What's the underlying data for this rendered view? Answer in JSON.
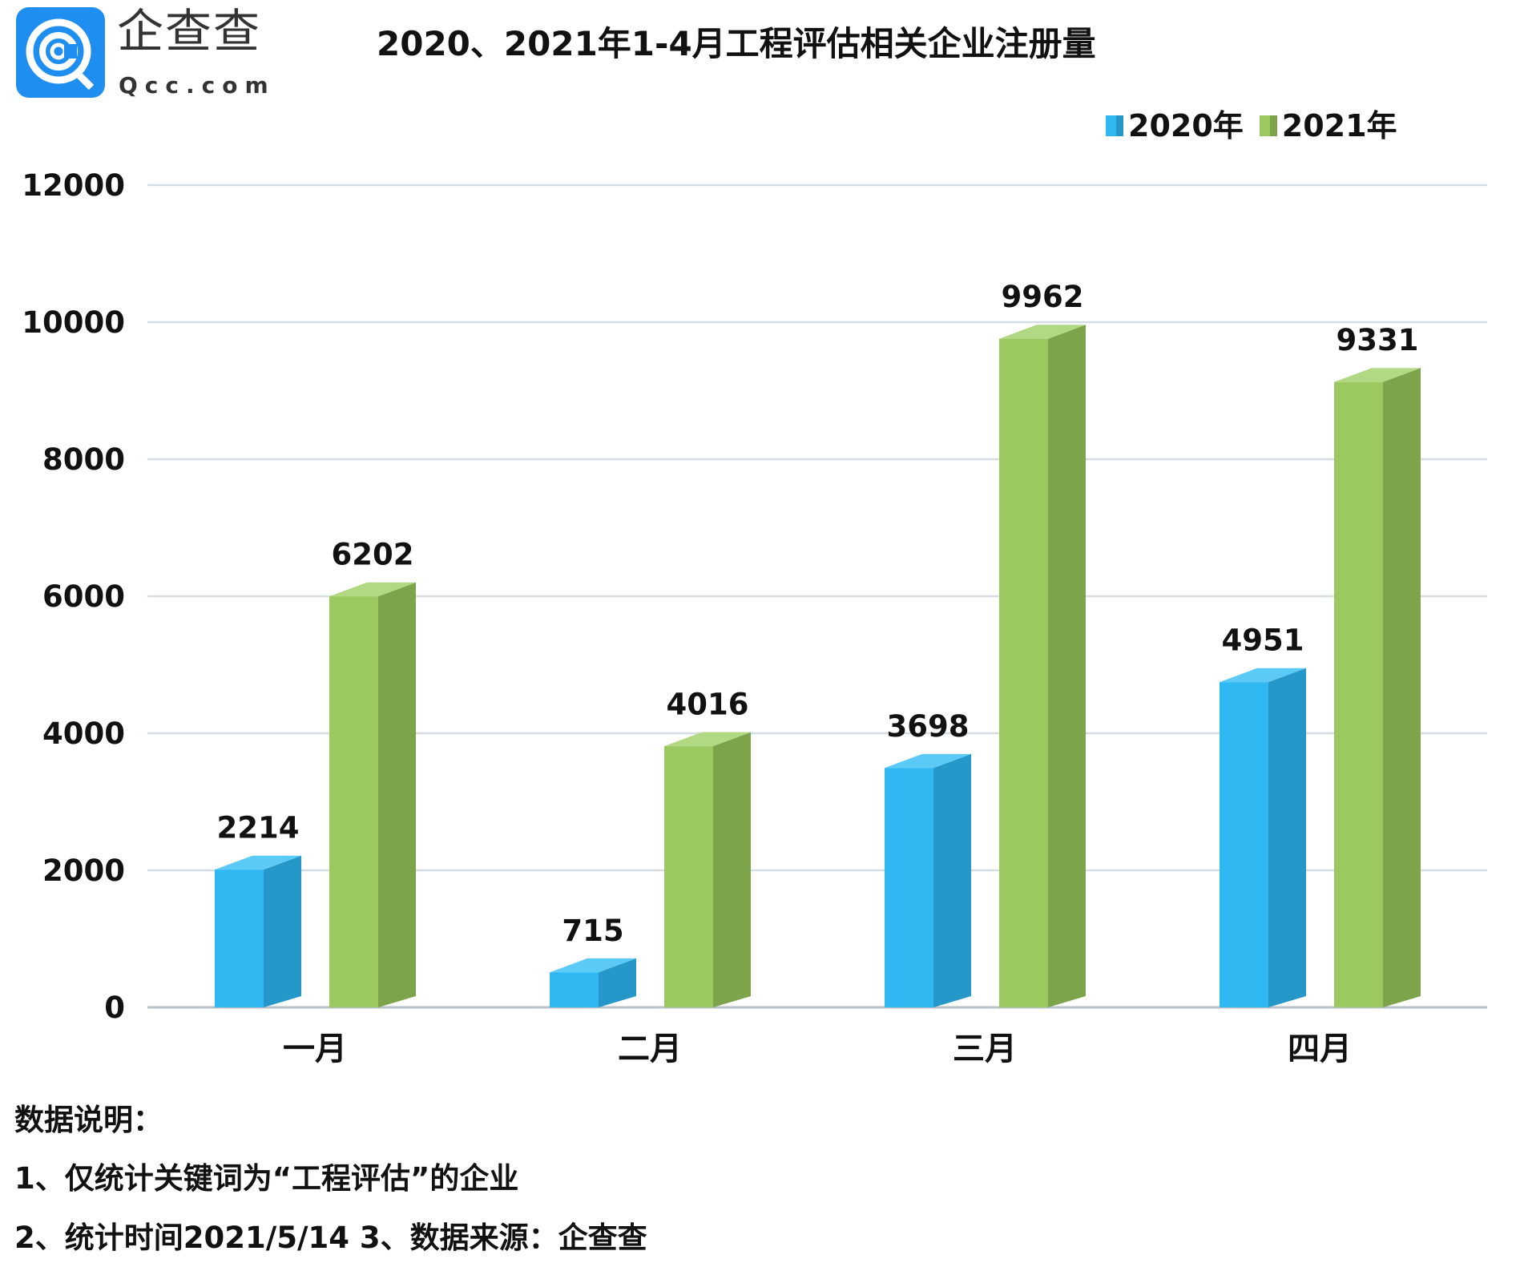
{
  "logo": {
    "cn": "企查查",
    "en": "Qcc.com",
    "color": "#1e8ff0"
  },
  "chart_data": {
    "type": "bar",
    "title": "2020、2021年1-4月工程评估相关企业注册量",
    "categories": [
      "一月",
      "二月",
      "三月",
      "四月"
    ],
    "series": [
      {
        "name": "2020年",
        "values": [
          2214,
          715,
          3698,
          4951
        ],
        "color": "#2fb8f2",
        "side_color": "#2697c9",
        "top_color": "#5ccaf7"
      },
      {
        "name": "2021年",
        "values": [
          6202,
          4016,
          9962,
          9331
        ],
        "color": "#9bc95f",
        "side_color": "#7da34b",
        "top_color": "#b2d883"
      }
    ],
    "yticks": [
      "0",
      "2000",
      "4000",
      "6000",
      "8000",
      "10000",
      "12000"
    ],
    "ylim": [
      0,
      12000
    ],
    "grid": true,
    "legend_position": "top-right",
    "style": "3d-column"
  },
  "notes": {
    "heading": "数据说明：",
    "line1": "1、仅统计关键词为“工程评估”的企业",
    "line2": "2、统计时间2021/5/14   3、数据来源：企查查"
  }
}
